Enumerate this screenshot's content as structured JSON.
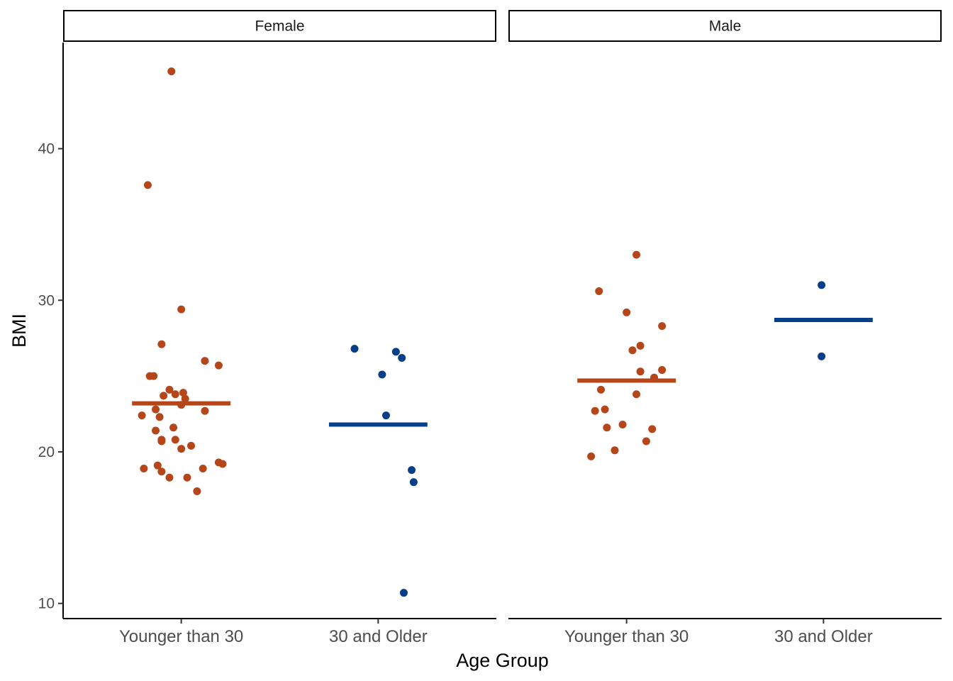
{
  "chart_data": {
    "type": "scatter",
    "xlabel": "Age Group",
    "ylabel": "BMI",
    "ylim": [
      9,
      47
    ],
    "yticks": [
      10,
      20,
      30,
      40
    ],
    "categories": [
      "Younger than 30",
      "30 and Older"
    ],
    "colors": {
      "Younger than 30": "#B5461A",
      "30 and Older": "#063E8A"
    },
    "grid": false,
    "legend": "none",
    "facets": [
      {
        "name": "Female",
        "groups": [
          {
            "category": "Younger than 30",
            "mean": 23.2,
            "points": [
              {
                "x": -0.05,
                "y": 45.1
              },
              {
                "x": -0.17,
                "y": 37.6
              },
              {
                "x": 0.0,
                "y": 29.4
              },
              {
                "x": -0.1,
                "y": 27.1
              },
              {
                "x": 0.12,
                "y": 26.0
              },
              {
                "x": 0.19,
                "y": 25.7
              },
              {
                "x": -0.16,
                "y": 25.0
              },
              {
                "x": -0.14,
                "y": 25.0
              },
              {
                "x": -0.06,
                "y": 24.1
              },
              {
                "x": 0.01,
                "y": 23.9
              },
              {
                "x": -0.03,
                "y": 23.8
              },
              {
                "x": -0.09,
                "y": 23.7
              },
              {
                "x": 0.02,
                "y": 23.5
              },
              {
                "x": 0.0,
                "y": 23.1
              },
              {
                "x": -0.13,
                "y": 22.8
              },
              {
                "x": 0.12,
                "y": 22.7
              },
              {
                "x": -0.2,
                "y": 22.4
              },
              {
                "x": -0.11,
                "y": 22.3
              },
              {
                "x": -0.04,
                "y": 21.6
              },
              {
                "x": -0.13,
                "y": 21.4
              },
              {
                "x": -0.03,
                "y": 20.8
              },
              {
                "x": -0.1,
                "y": 20.8
              },
              {
                "x": -0.1,
                "y": 20.7
              },
              {
                "x": 0.05,
                "y": 20.4
              },
              {
                "x": 0.0,
                "y": 20.2
              },
              {
                "x": 0.19,
                "y": 19.3
              },
              {
                "x": 0.21,
                "y": 19.2
              },
              {
                "x": -0.12,
                "y": 19.1
              },
              {
                "x": -0.19,
                "y": 18.9
              },
              {
                "x": 0.11,
                "y": 18.9
              },
              {
                "x": -0.1,
                "y": 18.7
              },
              {
                "x": -0.06,
                "y": 18.3
              },
              {
                "x": 0.03,
                "y": 18.3
              },
              {
                "x": 0.08,
                "y": 17.4
              }
            ]
          },
          {
            "category": "30 and Older",
            "mean": 21.8,
            "points": [
              {
                "x": -0.12,
                "y": 26.8
              },
              {
                "x": 0.09,
                "y": 26.6
              },
              {
                "x": 0.12,
                "y": 26.2
              },
              {
                "x": 0.02,
                "y": 25.1
              },
              {
                "x": 0.04,
                "y": 22.4
              },
              {
                "x": 0.17,
                "y": 18.8
              },
              {
                "x": 0.18,
                "y": 18.0
              },
              {
                "x": 0.13,
                "y": 10.7
              }
            ]
          }
        ]
      },
      {
        "name": "Male",
        "groups": [
          {
            "category": "Younger than 30",
            "mean": 24.7,
            "points": [
              {
                "x": 0.05,
                "y": 33.0
              },
              {
                "x": -0.14,
                "y": 30.6
              },
              {
                "x": 0.0,
                "y": 29.2
              },
              {
                "x": 0.18,
                "y": 28.3
              },
              {
                "x": 0.07,
                "y": 27.0
              },
              {
                "x": 0.03,
                "y": 26.7
              },
              {
                "x": 0.18,
                "y": 25.4
              },
              {
                "x": 0.07,
                "y": 25.3
              },
              {
                "x": 0.14,
                "y": 24.9
              },
              {
                "x": -0.13,
                "y": 24.1
              },
              {
                "x": 0.05,
                "y": 23.8
              },
              {
                "x": -0.11,
                "y": 22.8
              },
              {
                "x": -0.16,
                "y": 22.7
              },
              {
                "x": -0.02,
                "y": 21.8
              },
              {
                "x": -0.1,
                "y": 21.6
              },
              {
                "x": 0.13,
                "y": 21.5
              },
              {
                "x": 0.1,
                "y": 20.7
              },
              {
                "x": -0.06,
                "y": 20.1
              },
              {
                "x": -0.18,
                "y": 19.7
              }
            ]
          },
          {
            "category": "30 and Older",
            "mean": 28.7,
            "points": [
              {
                "x": -0.01,
                "y": 31.0
              },
              {
                "x": -0.01,
                "y": 26.3
              }
            ]
          }
        ]
      }
    ]
  }
}
